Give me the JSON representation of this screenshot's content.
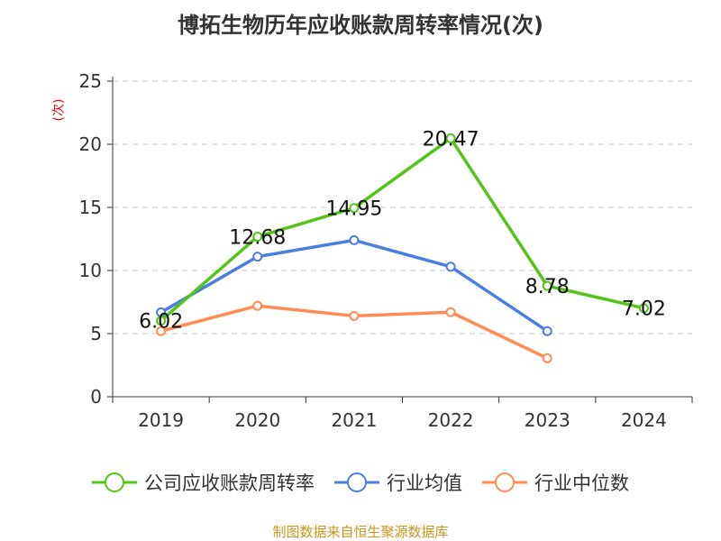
{
  "chart_data": {
    "type": "line",
    "title": "博拓生物历年应收账款周转率情况(次)",
    "ylabel": "(次)",
    "xlabel": "",
    "ylim": [
      0,
      25
    ],
    "yticks": [
      0,
      5,
      10,
      15,
      20,
      25
    ],
    "categories": [
      "2019",
      "2020",
      "2021",
      "2022",
      "2023",
      "2024"
    ],
    "grid": true,
    "legend_position": "bottom",
    "series": [
      {
        "name": "公司应收账款周转率",
        "color": "#52c41a",
        "values": [
          6.02,
          12.68,
          14.95,
          20.47,
          8.78,
          7.02
        ],
        "labels": [
          "6.02",
          "12.68",
          "14.95",
          "20.47",
          "8.78",
          "7.02"
        ]
      },
      {
        "name": "行业均值",
        "color": "#4a7fe0",
        "values": [
          6.69,
          11.1,
          12.4,
          10.3,
          5.2,
          null
        ]
      },
      {
        "name": "行业中位数",
        "color": "#ff8c55",
        "values": [
          5.2,
          7.2,
          6.4,
          6.7,
          3.05,
          null
        ]
      }
    ]
  },
  "source": "制图数据来自恒生聚源数据库"
}
